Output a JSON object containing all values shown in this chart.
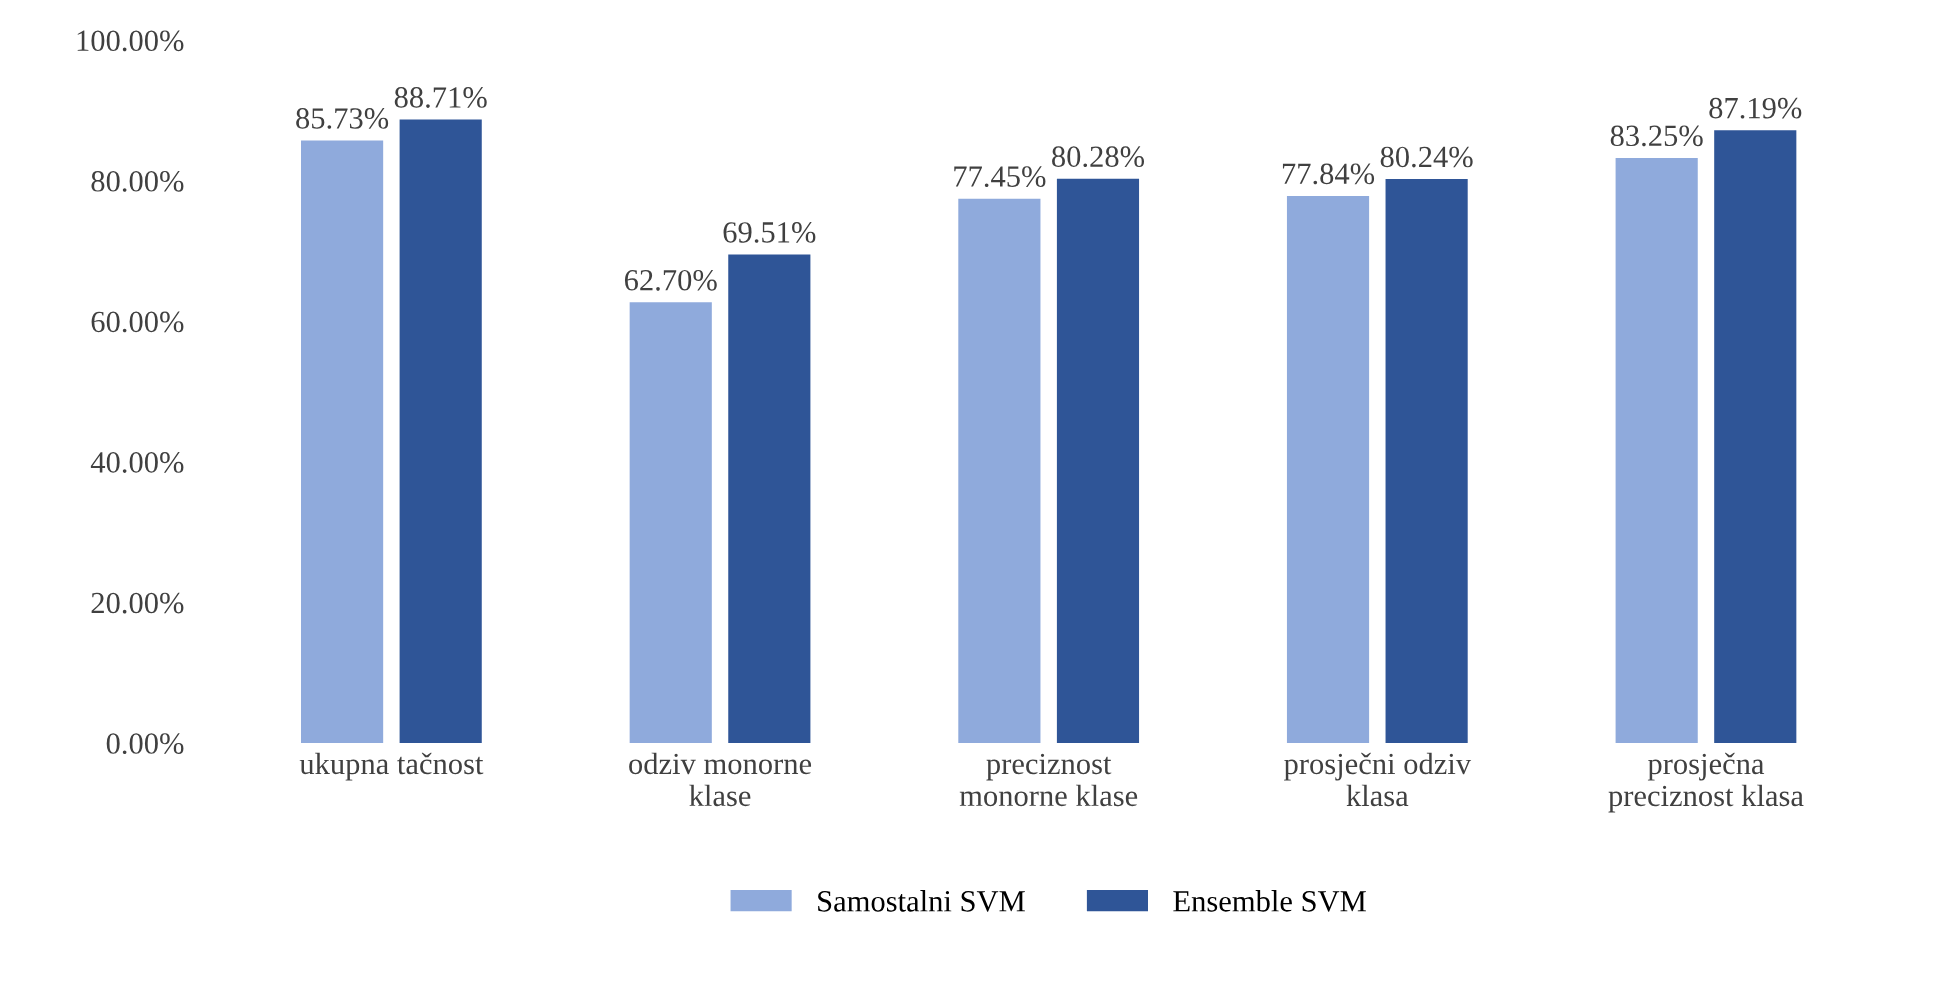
{
  "chart_data": {
    "type": "bar",
    "categories": [
      "ukupna tačnost",
      "odziv monorne\nklase",
      "preciznost\nmonorne klase",
      "prosječni odziv\nklasa",
      "prosječna\npreciznost klasa"
    ],
    "series": [
      {
        "name": "Samostalni SVM",
        "color": "#8faadc",
        "values": [
          85.73,
          62.7,
          77.45,
          77.84,
          83.25
        ],
        "value_labels": [
          "85.73%",
          "62.70%",
          "77.45%",
          "77.84%",
          "83.25%"
        ]
      },
      {
        "name": "Ensemble SVM",
        "color": "#2f5597",
        "values": [
          88.71,
          69.51,
          80.28,
          80.24,
          87.19
        ],
        "value_labels": [
          "88.71%",
          "69.51%",
          "80.28%",
          "80.24%",
          "87.19%"
        ]
      }
    ],
    "ylim": [
      0,
      100
    ],
    "yticks": [
      {
        "value": 0,
        "label": "0.00%"
      },
      {
        "value": 20,
        "label": "20.00%"
      },
      {
        "value": 40,
        "label": "40.00%"
      },
      {
        "value": 60,
        "label": "60.00%"
      },
      {
        "value": 80,
        "label": "80.00%"
      },
      {
        "value": 100,
        "label": "100.00%"
      }
    ],
    "grid": false,
    "legend": "bottom"
  }
}
